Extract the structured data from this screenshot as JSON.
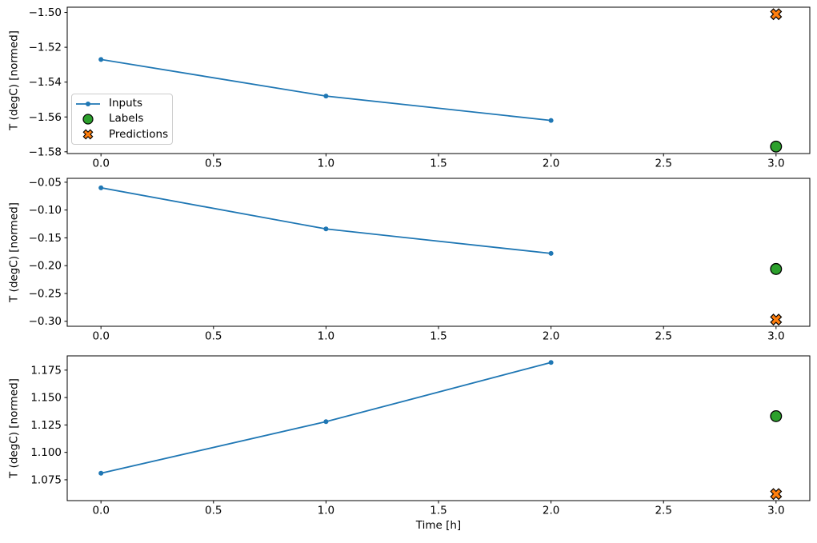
{
  "chart_data": {
    "type": "line",
    "title": "",
    "xlabel": "Time [h]",
    "ylabel": "T (degC) [normed]",
    "xlim": [
      -0.15,
      3.15
    ],
    "x_ticks": [
      0.0,
      0.5,
      1.0,
      1.5,
      2.0,
      2.5,
      3.0
    ],
    "x_tick_labels": [
      "0.0",
      "0.5",
      "1.0",
      "1.5",
      "2.0",
      "2.5",
      "3.0"
    ],
    "grid": false,
    "legend_position": "upper left inside first subplot",
    "colors": {
      "inputs": "#1f77b4",
      "labels": "#2ca02c",
      "predictions": "#ff7f0e",
      "marker_edge": "#000000"
    },
    "legend": [
      {
        "label": "Inputs",
        "marker": "line-with-dot"
      },
      {
        "label": "Labels",
        "marker": "filled-circle"
      },
      {
        "label": "Predictions",
        "marker": "filled-x"
      }
    ],
    "subplots": [
      {
        "ylim": [
          -1.581,
          -1.497
        ],
        "y_ticks": [
          -1.5,
          -1.52,
          -1.54,
          -1.56,
          -1.58
        ],
        "y_tick_labels": [
          "−1.50",
          "−1.52",
          "−1.54",
          "−1.56",
          "−1.58"
        ],
        "series": [
          {
            "name": "Inputs",
            "type": "line",
            "marker": "dot",
            "color": "#1f77b4",
            "x": [
              0,
              1,
              2
            ],
            "y": [
              -1.527,
              -1.548,
              -1.562
            ]
          },
          {
            "name": "Labels",
            "type": "scatter",
            "marker": "circle",
            "color": "#2ca02c",
            "x": [
              3
            ],
            "y": [
              -1.577
            ]
          },
          {
            "name": "Predictions",
            "type": "scatter",
            "marker": "X",
            "color": "#ff7f0e",
            "x": [
              3
            ],
            "y": [
              -1.501
            ]
          }
        ]
      },
      {
        "ylim": [
          -0.309,
          -0.043
        ],
        "y_ticks": [
          -0.05,
          -0.1,
          -0.15,
          -0.2,
          -0.25,
          -0.3
        ],
        "y_tick_labels": [
          "−0.05",
          "−0.10",
          "−0.15",
          "−0.20",
          "−0.25",
          "−0.30"
        ],
        "series": [
          {
            "name": "Inputs",
            "type": "line",
            "marker": "dot",
            "color": "#1f77b4",
            "x": [
              0,
              1,
              2
            ],
            "y": [
              -0.06,
              -0.134,
              -0.178
            ]
          },
          {
            "name": "Labels",
            "type": "scatter",
            "marker": "circle",
            "color": "#2ca02c",
            "x": [
              3
            ],
            "y": [
              -0.206
            ]
          },
          {
            "name": "Predictions",
            "type": "scatter",
            "marker": "X",
            "color": "#ff7f0e",
            "x": [
              3
            ],
            "y": [
              -0.297
            ]
          }
        ]
      },
      {
        "ylim": [
          1.056,
          1.188
        ],
        "y_ticks": [
          1.075,
          1.1,
          1.125,
          1.15,
          1.175
        ],
        "y_tick_labels": [
          "1.075",
          "1.100",
          "1.125",
          "1.150",
          "1.175"
        ],
        "series": [
          {
            "name": "Inputs",
            "type": "line",
            "marker": "dot",
            "color": "#1f77b4",
            "x": [
              0,
              1,
              2
            ],
            "y": [
              1.081,
              1.128,
              1.182
            ]
          },
          {
            "name": "Labels",
            "type": "scatter",
            "marker": "circle",
            "color": "#2ca02c",
            "x": [
              3
            ],
            "y": [
              1.133
            ]
          },
          {
            "name": "Predictions",
            "type": "scatter",
            "marker": "X",
            "color": "#ff7f0e",
            "x": [
              3
            ],
            "y": [
              1.062
            ]
          }
        ]
      }
    ]
  }
}
